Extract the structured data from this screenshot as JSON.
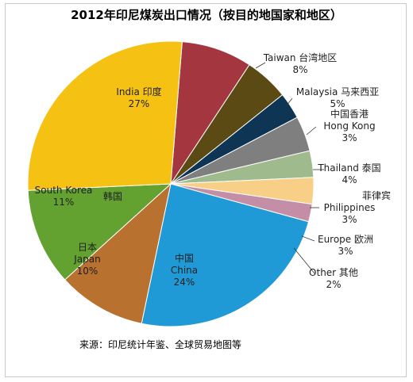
{
  "chart_data": {
    "type": "pie",
    "title": "2012年印尼煤炭出口情况（按目的地国家和地区）",
    "source": "来源：印尼统计年鉴、全球贸易地图等",
    "slices": [
      {
        "label": "Taiwan 台湾地区",
        "en": "Taiwan",
        "cn": "台湾地区",
        "value": 8,
        "pct": "8%",
        "color": "#a4363f"
      },
      {
        "label": "Malaysia 马来西亚",
        "en": "Malaysia",
        "cn": "马来西亚",
        "value": 5,
        "pct": "5%",
        "color": "#5b4a14"
      },
      {
        "label": "中国香港 Hong Kong",
        "en": "Hong Kong",
        "cn": "中国香港",
        "value": 3,
        "pct": "3%",
        "color": "#0e3554"
      },
      {
        "label": "Thailand 泰国",
        "en": "Thailand",
        "cn": "泰国",
        "value": 4,
        "pct": "4%",
        "color": "#7f7f7f"
      },
      {
        "label": "菲律宾 Philippines",
        "en": "Philippines",
        "cn": "菲律宾",
        "value": 3,
        "pct": "3%",
        "color": "#9fba8c"
      },
      {
        "label": "Europe 欧洲",
        "en": "Europe",
        "cn": "欧洲",
        "value": 3,
        "pct": "3%",
        "color": "#f8cf86"
      },
      {
        "label": "Other 其他",
        "en": "Other",
        "cn": "其他",
        "value": 2,
        "pct": "2%",
        "color": "#c48ea6"
      },
      {
        "label": "中国 China",
        "en": "China",
        "cn": "中国",
        "value": 24,
        "pct": "24%",
        "color": "#1f9ad6"
      },
      {
        "label": "日本 Japan",
        "en": "Japan",
        "cn": "日本",
        "value": 10,
        "pct": "10%",
        "color": "#b8712f"
      },
      {
        "label": "South Korea 韩国",
        "en": "South Korea",
        "cn": "韩国",
        "value": 11,
        "pct": "11%",
        "color": "#63a230"
      },
      {
        "label": "India 印度",
        "en": "India",
        "cn": "印度",
        "value": 27,
        "pct": "27%",
        "color": "#f5c213"
      }
    ]
  }
}
